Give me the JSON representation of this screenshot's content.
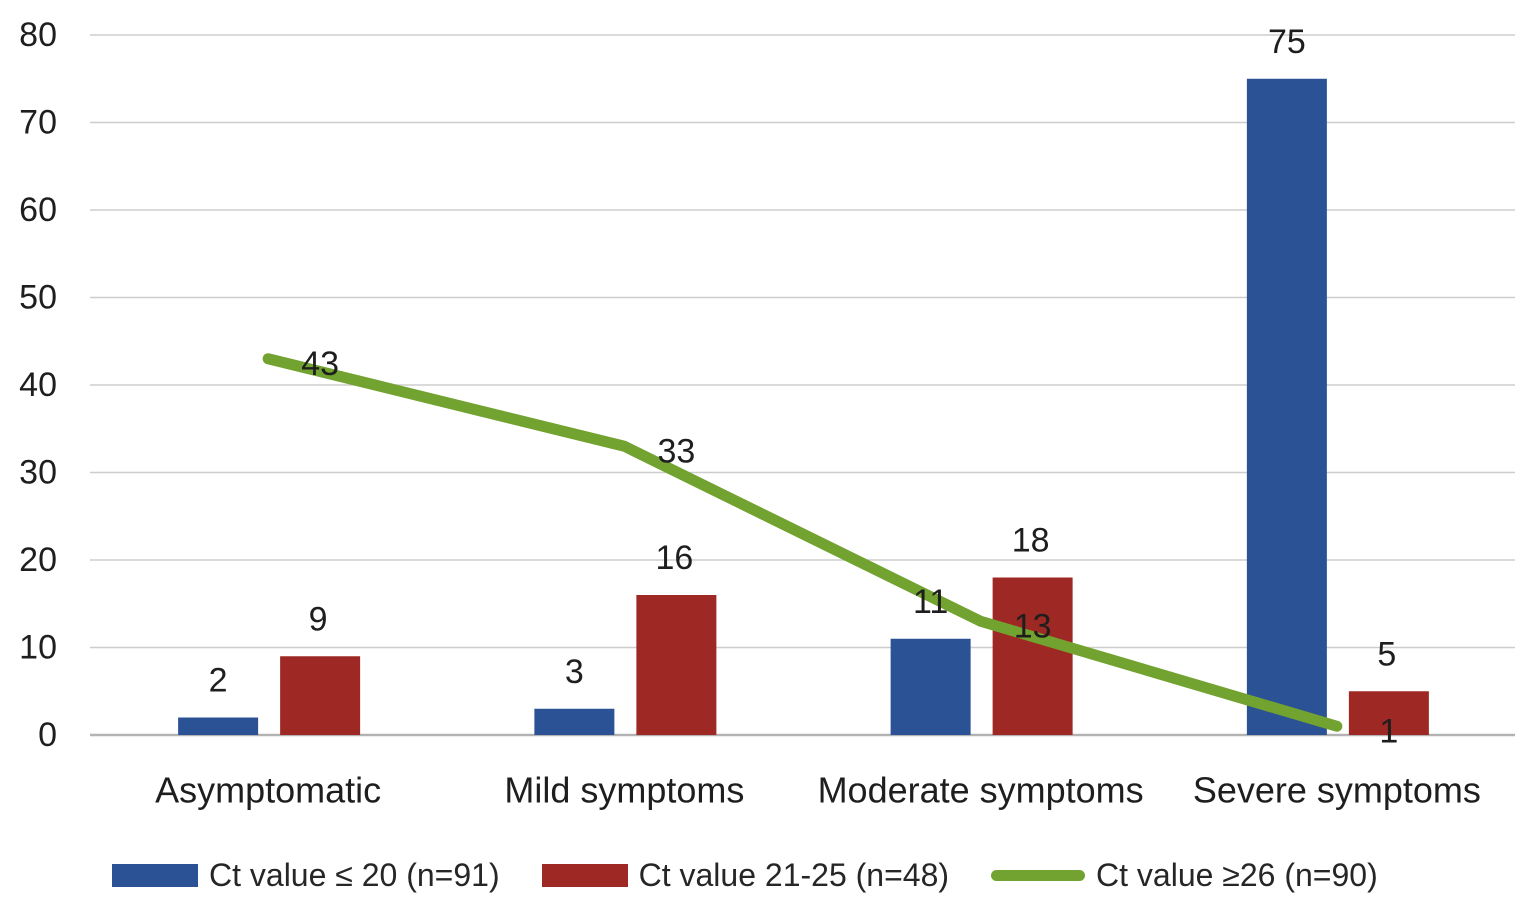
{
  "chart_data": {
    "type": "combo",
    "categories": [
      "Asymptomatic",
      "Mild symptoms",
      "Moderate symptoms",
      "Severe symptoms"
    ],
    "series": [
      {
        "name": "Ct value ≤ 20 (n=91)",
        "type": "bar",
        "color": "#2B5294",
        "values": [
          2,
          3,
          11,
          75
        ]
      },
      {
        "name": "Ct value 21-25 (n=48)",
        "type": "bar",
        "color": "#9E2823",
        "values": [
          9,
          16,
          18,
          5
        ]
      },
      {
        "name": "Ct value ≥26 (n=90)",
        "type": "line",
        "color": "#72A22F",
        "values": [
          43,
          33,
          13,
          1
        ]
      }
    ],
    "title": "",
    "xlabel": "",
    "ylabel": "",
    "ylim": [
      0,
      80
    ],
    "y_ticks": [
      0,
      10,
      20,
      30,
      40,
      50,
      60,
      70,
      80
    ],
    "grid": "horizontal",
    "data_labels": true,
    "legend_position": "bottom"
  },
  "colors": {
    "gridline": "#CDCDCD",
    "baseline": "#B3B3B3",
    "text": "#1E1E1E",
    "background": "#FFFFFF"
  }
}
